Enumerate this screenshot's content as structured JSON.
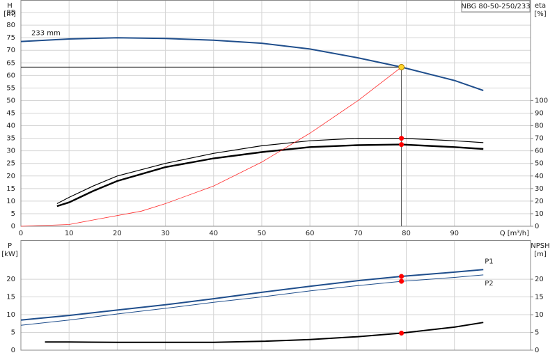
{
  "chart_data": [
    {
      "type": "line",
      "title": "NBG 80-50-250/233",
      "ylabel": "H",
      "yunit": "[m]",
      "y2label": "eta",
      "y2unit": "[%]",
      "xlabel": "Q [m³/h]",
      "xlim": [
        0,
        105.8
      ],
      "xticks": [
        0,
        10,
        20,
        30,
        40,
        50,
        60,
        70,
        80,
        90
      ],
      "ylim": [
        0,
        90
      ],
      "yticks": [
        0,
        5,
        10,
        15,
        20,
        25,
        30,
        35,
        40,
        45,
        50,
        55,
        60,
        65,
        70,
        75,
        80,
        85
      ],
      "y2lim": [
        0,
        180
      ],
      "y2ticks": [
        0,
        10,
        20,
        30,
        40,
        50,
        60,
        70,
        80,
        90,
        100
      ],
      "grid": true,
      "series": [
        {
          "name": "233 mm",
          "color": "#1f4e8c",
          "width": 2,
          "x": [
            0,
            10,
            20,
            30,
            40,
            50,
            60,
            70,
            79,
            90,
            96
          ],
          "values": [
            73.5,
            74.5,
            75,
            74.7,
            74,
            72.8,
            70.5,
            67,
            63.3,
            58,
            54
          ]
        },
        {
          "color": "#000000",
          "width": 1.2,
          "axis": "y2",
          "x": [
            7.5,
            10,
            15,
            20,
            30,
            40,
            50,
            60,
            70,
            79,
            90,
            96
          ],
          "values": [
            18,
            23,
            32,
            40,
            50,
            58,
            64,
            68,
            70,
            70,
            68,
            66.5
          ]
        },
        {
          "color": "#000000",
          "width": 2.4,
          "axis": "y2",
          "x": [
            7.5,
            10,
            15,
            20,
            30,
            40,
            50,
            60,
            70,
            79,
            90,
            96
          ],
          "values": [
            16,
            19,
            28,
            36,
            47,
            54,
            59,
            63,
            64.5,
            65,
            63,
            61.5
          ]
        },
        {
          "color": "#ff2a2a",
          "width": 0.8,
          "x": [
            0,
            10,
            15,
            25,
            30,
            40,
            50,
            60,
            70,
            79
          ],
          "values": [
            0,
            0.7,
            2.5,
            6,
            9,
            16,
            25.5,
            37,
            50,
            63.3
          ]
        }
      ],
      "operating_point": {
        "x": 79,
        "y": 63.3,
        "color": "#ffd42a"
      },
      "markers": [
        {
          "x": 79,
          "y": 70,
          "axis": "y2",
          "color": "#ff0000"
        },
        {
          "x": 79,
          "y": 65,
          "axis": "y2",
          "color": "#ff0000"
        }
      ]
    },
    {
      "type": "line",
      "ylabel": "P",
      "yunit": "[kW]",
      "y2label": "NPSH",
      "y2unit": "[m]",
      "xlim": [
        0,
        105.8
      ],
      "xticks": [
        0,
        10,
        20,
        30,
        40,
        50,
        60,
        70,
        80,
        90
      ],
      "ylim": [
        0,
        31
      ],
      "yticks": [
        0,
        5,
        10,
        15,
        20
      ],
      "y2lim": [
        0,
        31
      ],
      "y2ticks": [
        0,
        5,
        10,
        15,
        20
      ],
      "grid": true,
      "series": [
        {
          "name": "P1",
          "color": "#1f4e8c",
          "width": 2,
          "x": [
            0,
            10,
            20,
            30,
            40,
            50,
            60,
            70,
            79,
            90,
            96
          ],
          "values": [
            8.5,
            9.8,
            11.3,
            12.8,
            14.5,
            16.3,
            18,
            19.6,
            20.8,
            22,
            22.7
          ]
        },
        {
          "name": "P2",
          "color": "#1f4e8c",
          "width": 1,
          "x": [
            0,
            10,
            20,
            30,
            40,
            50,
            60,
            70,
            79,
            90,
            96
          ],
          "values": [
            7,
            8.5,
            10.2,
            11.8,
            13.5,
            15,
            16.7,
            18.2,
            19.4,
            20.5,
            21.2
          ]
        },
        {
          "color": "#000000",
          "width": 2,
          "axis": "y2",
          "x": [
            5,
            10,
            20,
            30,
            40,
            50,
            60,
            70,
            79,
            90,
            96
          ],
          "values": [
            2.3,
            2.3,
            2.2,
            2.2,
            2.2,
            2.5,
            3,
            3.8,
            4.8,
            6.5,
            7.8
          ]
        }
      ],
      "markers": [
        {
          "x": 79,
          "y": 20.8,
          "color": "#ff0000"
        },
        {
          "x": 79,
          "y": 19.4,
          "color": "#ff0000"
        },
        {
          "x": 79,
          "y": 4.8,
          "axis": "y2",
          "color": "#ff0000"
        }
      ]
    }
  ]
}
